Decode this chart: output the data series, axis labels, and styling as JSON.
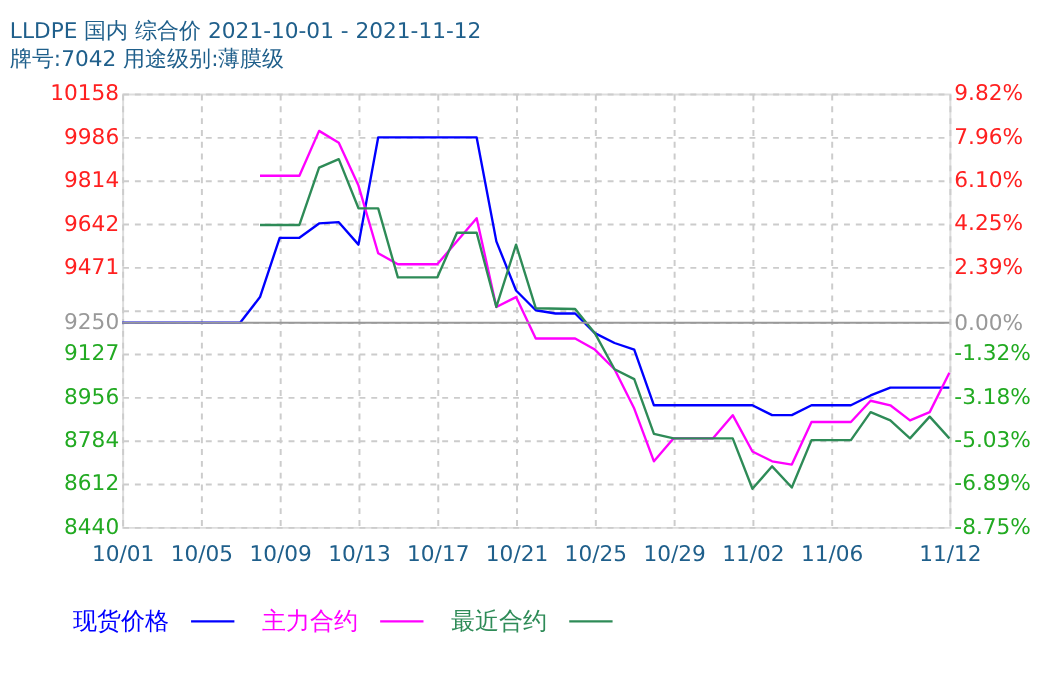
{
  "chart_data": {
    "type": "line",
    "title": "LLDPE 国内 综合价 2021-10-01 - 2021-11-12",
    "subtitle": "牌号:7042 用途级别:薄膜级",
    "xlim": [
      "2021-10-01",
      "2021-11-12"
    ],
    "xticks": [
      {
        "value": "2021-10-01",
        "label": "10/01"
      },
      {
        "value": "2021-10-05",
        "label": "10/05"
      },
      {
        "value": "2021-10-09",
        "label": "10/09"
      },
      {
        "value": "2021-10-13",
        "label": "10/13"
      },
      {
        "value": "2021-10-17",
        "label": "10/17"
      },
      {
        "value": "2021-10-21",
        "label": "10/21"
      },
      {
        "value": "2021-10-25",
        "label": "10/25"
      },
      {
        "value": "2021-10-29",
        "label": "10/29"
      },
      {
        "value": "2021-11-02",
        "label": "11/02"
      },
      {
        "value": "2021-11-06",
        "label": "11/06"
      },
      {
        "value": "2021-11-12",
        "label": "11/12"
      }
    ],
    "ylim": [
      8440,
      10158
    ],
    "yticks": [
      8440,
      8612,
      8784,
      8956,
      9127,
      9250,
      {
        "value": 9299,
        "label": null
      },
      9471,
      9642,
      9814,
      9986,
      10158
    ],
    "y2lim": [
      -8.75,
      9.82
    ],
    "y2ticks": [
      {
        "value": -8.75,
        "label": "-8.75%"
      },
      {
        "value": -6.89,
        "label": "-6.89%"
      },
      {
        "value": -5.03,
        "label": "-5.03%"
      },
      {
        "value": -3.18,
        "label": "-3.18%"
      },
      {
        "value": -1.32,
        "label": "-1.32%"
      },
      {
        "value": 0,
        "label": "0.00%"
      },
      {
        "value": 2.39,
        "label": "2.39%"
      },
      {
        "value": 4.25,
        "label": "4.25%"
      },
      {
        "value": 6.1,
        "label": "6.10%"
      },
      {
        "value": 7.96,
        "label": "7.96%"
      },
      {
        "value": 9.82,
        "label": "9.82%"
      }
    ],
    "ref_lines": [
      {
        "axis": "y2",
        "value": 0,
        "color": "#999999"
      }
    ],
    "grid": true,
    "legend": "bottom",
    "marker": "none",
    "line_style": "solid",
    "series": [
      {
        "name": "现货价格",
        "color": "#0000ff",
        "x": [
          "2021-10-01",
          "2021-10-07",
          "2021-10-08",
          "2021-10-09",
          "2021-10-10",
          "2021-10-11",
          "2021-10-12",
          "2021-10-13",
          "2021-10-14",
          "2021-10-19",
          "2021-10-20",
          "2021-10-21",
          "2021-10-22",
          "2021-10-23",
          "2021-10-24",
          "2021-10-25",
          "2021-10-26",
          "2021-10-27",
          "2021-10-28",
          "2021-11-02",
          "2021-11-03",
          "2021-11-04",
          "2021-11-05",
          "2021-11-07",
          "2021-11-08",
          "2021-11-09",
          "2021-11-12"
        ],
        "values": [
          9250,
          9250,
          9351,
          9586,
          9586,
          9643,
          9648,
          9559,
          9984,
          9984,
          9572,
          9377,
          9299,
          9286,
          9286,
          9208,
          9169,
          9143,
          8922,
          8922,
          8883,
          8883,
          8922,
          8922,
          8961,
          8992,
          8992
        ]
      },
      {
        "name": "主力合约",
        "color": "#ff00ff",
        "x": [
          "2021-10-08",
          "2021-10-10",
          "2021-10-11",
          "2021-10-12",
          "2021-10-13",
          "2021-10-14",
          "2021-10-15",
          "2021-10-17",
          "2021-10-18",
          "2021-10-19",
          "2021-10-20",
          "2021-10-21",
          "2021-10-22",
          "2021-10-24",
          "2021-10-25",
          "2021-10-26",
          "2021-10-27",
          "2021-10-28",
          "2021-10-29",
          "2021-10-31",
          "2021-11-01",
          "2021-11-02",
          "2021-11-03",
          "2021-11-04",
          "2021-11-05",
          "2021-11-07",
          "2021-11-08",
          "2021-11-09",
          "2021-11-10",
          "2021-11-11",
          "2021-11-12"
        ],
        "values": [
          9832,
          9832,
          10010,
          9963,
          9793,
          9525,
          9481,
          9481,
          9572,
          9664,
          9312,
          9351,
          9187,
          9187,
          9143,
          9065,
          8909,
          8700,
          8791,
          8791,
          8883,
          8739,
          8700,
          8687,
          8856,
          8856,
          8940,
          8922,
          8862,
          8895,
          9051
        ]
      },
      {
        "name": "最近合约",
        "color": "#2e8b57",
        "x": [
          "2021-10-08",
          "2021-10-10",
          "2021-10-11",
          "2021-10-12",
          "2021-10-13",
          "2021-10-14",
          "2021-10-15",
          "2021-10-17",
          "2021-10-18",
          "2021-10-19",
          "2021-10-20",
          "2021-10-21",
          "2021-10-22",
          "2021-10-24",
          "2021-10-25",
          "2021-10-26",
          "2021-10-27",
          "2021-10-28",
          "2021-10-29",
          "2021-11-01",
          "2021-11-02",
          "2021-11-03",
          "2021-11-04",
          "2021-11-05",
          "2021-11-07",
          "2021-11-08",
          "2021-11-09",
          "2021-11-10",
          "2021-11-11",
          "2021-11-12"
        ],
        "values": [
          9637,
          9637,
          9864,
          9898,
          9703,
          9703,
          9429,
          9429,
          9606,
          9606,
          9312,
          9559,
          9307,
          9304,
          9208,
          9065,
          9026,
          8809,
          8791,
          8791,
          8591,
          8680,
          8596,
          8784,
          8784,
          8895,
          8862,
          8791,
          8877,
          8791
        ]
      }
    ]
  }
}
